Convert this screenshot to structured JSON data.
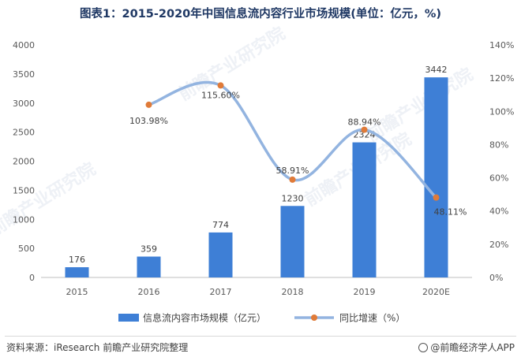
{
  "title": "图表1：2015-2020年中国信息流内容行业市场规模(单位：亿元，%)",
  "source": "资料来源：iResearch 前瞻产业研究院整理",
  "brand": "@前瞻经济学人APP",
  "watermark": "前瞻产业研究院",
  "colors": {
    "bar": "#3e7fd6",
    "line": "#93b4e0",
    "marker": "#e07b39",
    "title": "#1f3864"
  },
  "chart_data": {
    "type": "bar",
    "categories": [
      "2015",
      "2016",
      "2017",
      "2018",
      "2019",
      "2020E"
    ],
    "series": [
      {
        "name": "信息流内容市场规模（亿元）",
        "type": "bar",
        "axis": "left",
        "values": [
          176,
          359,
          774,
          1230,
          2324,
          3442
        ],
        "labels": [
          "176",
          "359",
          "774",
          "1230",
          "2324",
          "3442"
        ]
      },
      {
        "name": "同比增速（%）",
        "type": "line",
        "axis": "right",
        "values": [
          null,
          103.98,
          115.6,
          58.91,
          88.94,
          48.11
        ],
        "labels": [
          "",
          "103.98%",
          "115.60%",
          "58.91%",
          "88.94%",
          "48.11%"
        ]
      }
    ],
    "y_left": {
      "min": 0,
      "max": 4000,
      "ticks": [
        "0",
        "500",
        "1000",
        "1500",
        "2000",
        "2500",
        "3000",
        "3500",
        "4000"
      ]
    },
    "y_right": {
      "min": 0,
      "max": 140,
      "ticks": [
        "0%",
        "20%",
        "40%",
        "60%",
        "80%",
        "100%",
        "120%",
        "140%"
      ]
    },
    "grid": false,
    "legend_position": "bottom"
  }
}
